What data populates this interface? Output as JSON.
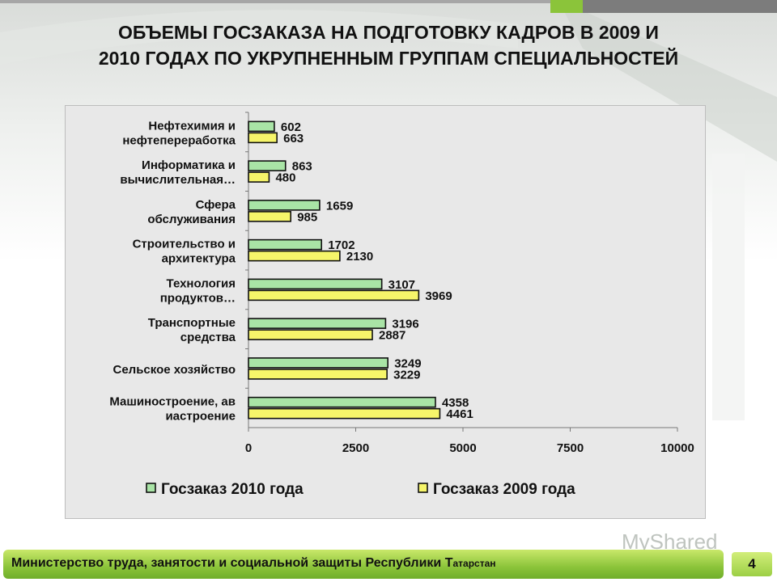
{
  "slide": {
    "title_line1": "ОБЪЕМЫ ГОСЗАКАЗА НА ПОДГОТОВКУ КАДРОВ В 2009 И",
    "title_line2": "2010 ГОДАХ ПО УКРУПНЕННЫМ ГРУППАМ СПЕЦИАЛЬНОСТЕЙ",
    "footer": "Министерство труда, занятости и социальной защиты Республики Т",
    "footer_small": "атарстан",
    "page_number": "4",
    "watermark": "MyShared",
    "colors": {
      "accent_green": "#8bc43a",
      "series_2010": "#a9e4a6",
      "series_2009": "#f6f56a"
    }
  },
  "chart_data": {
    "type": "bar",
    "orientation": "horizontal",
    "categories": [
      [
        "Нефтехимия и",
        "нефтепереработка"
      ],
      [
        "Информатика и",
        "вычислительная…"
      ],
      [
        "Сфера",
        "обслуживания"
      ],
      [
        "Строительство и",
        "архитектура"
      ],
      [
        "Технология",
        "продуктов…"
      ],
      [
        "Транспортные",
        "средства"
      ],
      [
        "Сельское хозяйство"
      ],
      [
        "Машиностроение, ав",
        "иастроение"
      ]
    ],
    "series": [
      {
        "name": "Госзаказ 2010 года",
        "color": "#a9e4a6",
        "values": [
          602,
          863,
          1659,
          1702,
          3107,
          3196,
          3249,
          4358
        ]
      },
      {
        "name": "Госзаказ 2009 года",
        "color": "#f6f56a",
        "values": [
          663,
          480,
          985,
          2130,
          3969,
          2887,
          3229,
          4461
        ]
      }
    ],
    "xlim": [
      0,
      10000
    ],
    "xticks": [
      "0",
      "2500",
      "5000",
      "7500",
      "10000"
    ],
    "grid": false,
    "legend": "bottom"
  }
}
